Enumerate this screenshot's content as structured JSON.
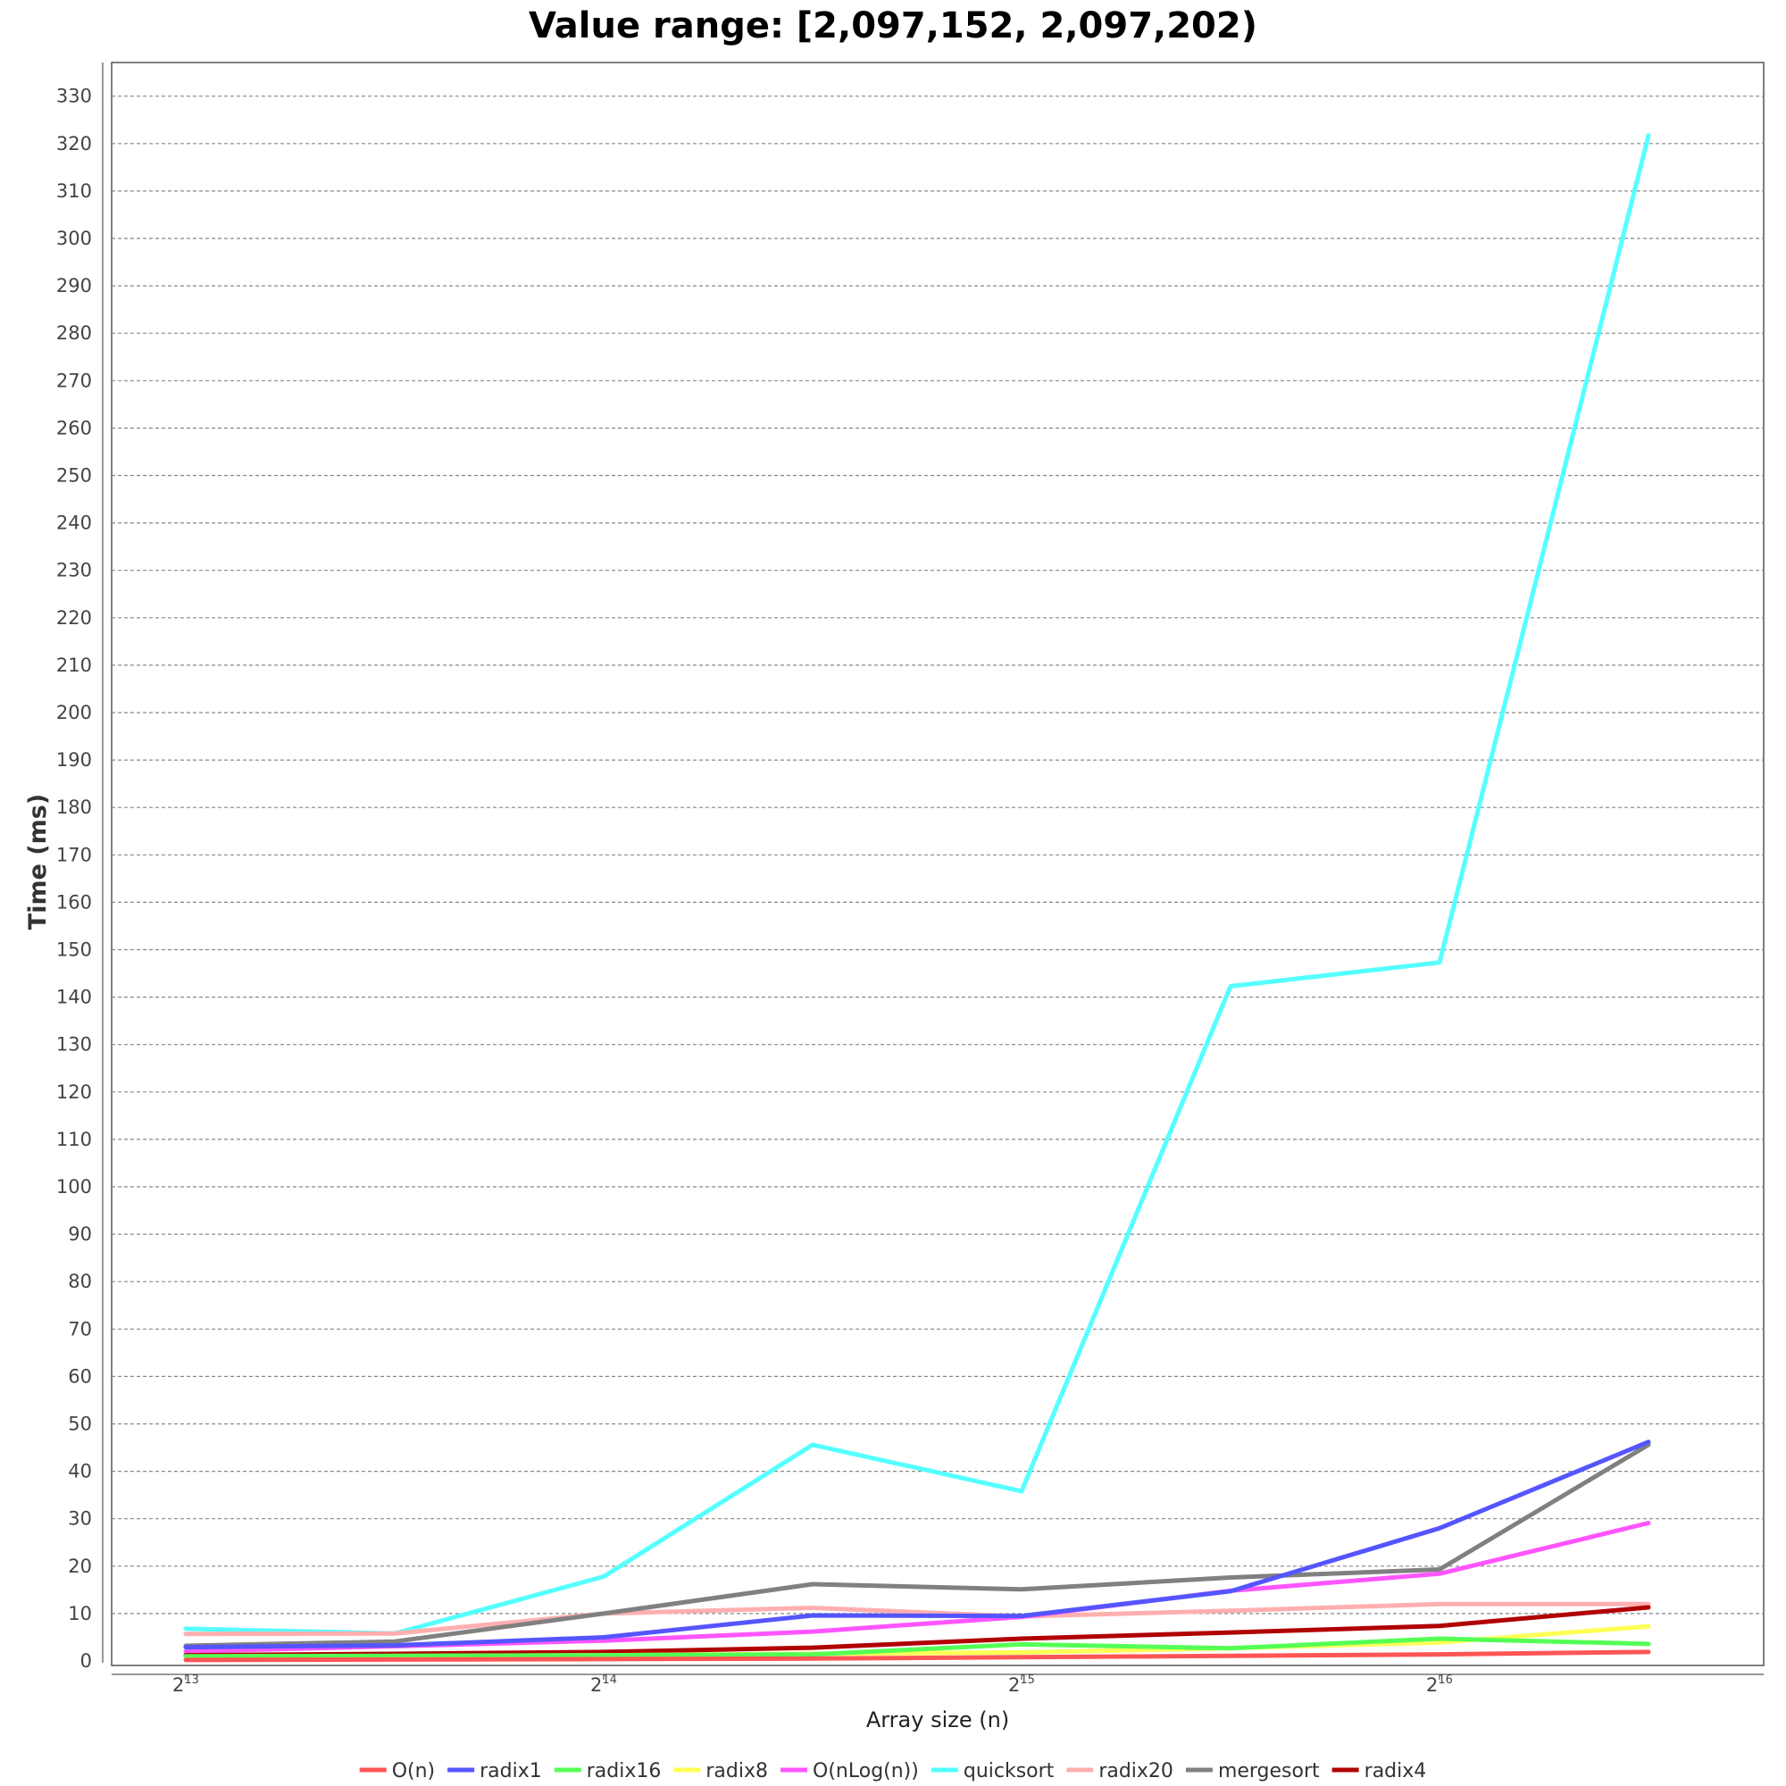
{
  "chart_data": {
    "type": "line",
    "title": "Value range: [2,097,152, 2,097,202)",
    "xlabel": "Array size (n)",
    "ylabel": "Time (ms)",
    "x_scale": "log2",
    "x": [
      8192,
      11585,
      16384,
      23170,
      32768,
      46341,
      65536,
      92682
    ],
    "x_ticks": [
      {
        "value": 8192,
        "base": "2",
        "exp": "13"
      },
      {
        "value": 16384,
        "base": "2",
        "exp": "14"
      },
      {
        "value": 32768,
        "base": "2",
        "exp": "15"
      },
      {
        "value": 65536,
        "base": "2",
        "exp": "16"
      }
    ],
    "ylim": [
      0,
      335
    ],
    "y_ticks": [
      0,
      10,
      20,
      30,
      40,
      50,
      60,
      70,
      80,
      90,
      100,
      110,
      120,
      130,
      140,
      150,
      160,
      170,
      180,
      190,
      200,
      210,
      220,
      230,
      240,
      250,
      260,
      270,
      280,
      290,
      300,
      310,
      320,
      330
    ],
    "grid": true,
    "legend_position": "bottom",
    "series": [
      {
        "name": "quicksort",
        "color": "#55ffff",
        "values": [
          6.8,
          5.8,
          17.8,
          45.6,
          35.8,
          142.3,
          147.3,
          321.7
        ]
      },
      {
        "name": "radix20",
        "color": "#ffafaf",
        "values": [
          5.7,
          5.8,
          10.0,
          11.2,
          9.4,
          10.6,
          12.0,
          12.0
        ]
      },
      {
        "name": "mergesort",
        "color": "#808080",
        "values": [
          3.2,
          4.1,
          10.0,
          16.2,
          15.1,
          17.6,
          19.3,
          45.6
        ]
      },
      {
        "name": "O(nLog(n))",
        "color": "#ff55ff",
        "values": [
          2.0,
          3.1,
          4.3,
          6.2,
          9.3,
          14.8,
          18.4,
          29.1
        ]
      },
      {
        "name": "radix1",
        "color": "#5555ff",
        "values": [
          2.9,
          3.3,
          5.0,
          9.6,
          9.5,
          14.7,
          28.0,
          46.2
        ]
      },
      {
        "name": "radix4",
        "color": "#b00000",
        "values": [
          1.2,
          1.5,
          1.9,
          2.8,
          4.7,
          6.0,
          7.4,
          11.3
        ]
      },
      {
        "name": "radix8",
        "color": "#ffff55",
        "values": [
          0.8,
          1.0,
          1.2,
          1.5,
          1.8,
          2.7,
          3.9,
          7.3
        ]
      },
      {
        "name": "radix16",
        "color": "#55ff55",
        "values": [
          1.0,
          1.1,
          1.2,
          1.4,
          3.5,
          2.7,
          4.7,
          3.6
        ]
      },
      {
        "name": "O(n)",
        "color": "#ff5555",
        "values": [
          0.2,
          0.3,
          0.4,
          0.5,
          0.8,
          1.1,
          1.4,
          1.9
        ]
      }
    ],
    "legend_order": [
      "O(n)",
      "radix1",
      "radix16",
      "radix8",
      "O(nLog(n))",
      "quicksort",
      "radix20",
      "mergesort",
      "radix4"
    ]
  }
}
